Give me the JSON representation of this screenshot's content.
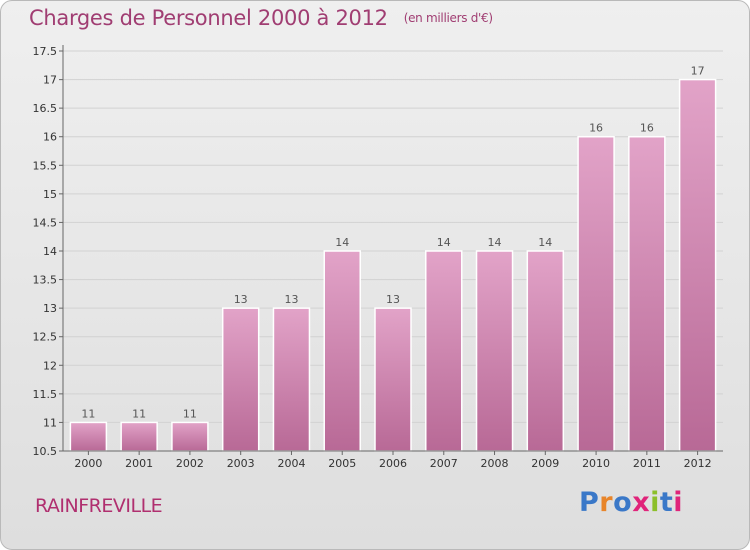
{
  "header": {
    "title": "Charges de Personnel 2000 à 2012",
    "unit": "(en milliers d'€)"
  },
  "footer": {
    "location": "RAINFREVILLE",
    "logo_text": "Proxiti"
  },
  "colors": {
    "title": "#a03d72",
    "bar_top": "#e2a3c8",
    "bar_bottom": "#b86996",
    "logo": [
      "#3a78c8",
      "#e8852a",
      "#3a78c8",
      "#e0247a",
      "#8cbf2a",
      "#3a78c8",
      "#e0247a"
    ]
  },
  "chart_data": {
    "type": "bar",
    "categories": [
      "2000",
      "2001",
      "2002",
      "2003",
      "2004",
      "2005",
      "2006",
      "2007",
      "2008",
      "2009",
      "2010",
      "2011",
      "2012"
    ],
    "values": [
      11,
      11,
      11,
      13,
      13,
      14,
      13,
      14,
      14,
      14,
      16,
      16,
      17
    ],
    "data_labels": [
      "11",
      "11",
      "11",
      "13",
      "13",
      "14",
      "13",
      "14",
      "14",
      "14",
      "16",
      "16",
      "17"
    ],
    "ylim": [
      10.5,
      17.5
    ],
    "yticks": [
      "10.5",
      "11",
      "11.5",
      "12",
      "12.5",
      "13",
      "13.5",
      "14",
      "14.5",
      "15",
      "15.5",
      "16",
      "16.5",
      "17",
      "17.5"
    ],
    "grid": true
  }
}
